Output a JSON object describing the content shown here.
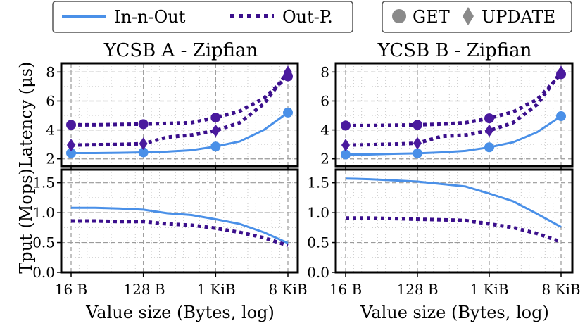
{
  "legend_series": {
    "items": [
      {
        "label": "In-n-Out",
        "color": "#4a90e8",
        "style": "solid"
      },
      {
        "label": "Out-P.",
        "color": "#3b0f8c",
        "style": "dotted"
      }
    ]
  },
  "legend_markers": {
    "items": [
      {
        "label": "GET",
        "marker": "circle"
      },
      {
        "label": "UPDATE",
        "marker": "diamond"
      }
    ]
  },
  "x_axis": {
    "label": "Value size (Bytes, log)",
    "ticks": [
      {
        "label": "16 B",
        "x": 16
      },
      {
        "label": "128 B",
        "x": 128
      },
      {
        "label": "1 KiB",
        "x": 1024
      },
      {
        "label": "8 KiB",
        "x": 8192
      }
    ]
  },
  "chart_data": [
    {
      "type": "line",
      "panel": "YCSB A latency",
      "title": "YCSB A - Zipfian",
      "xlabel": "Value size (Bytes, log)",
      "ylabel": "Latency (μs)",
      "xscale": "log2",
      "xlim": [
        16,
        8192
      ],
      "ylim": [
        1.5,
        8.6
      ],
      "yticks": [
        2,
        4,
        6,
        8
      ],
      "x": [
        16,
        32,
        64,
        128,
        256,
        512,
        1024,
        2048,
        4096,
        8192
      ],
      "series": [
        {
          "name": "In-n-Out GET",
          "values": [
            2.4,
            2.4,
            2.42,
            2.45,
            2.5,
            2.6,
            2.85,
            3.2,
            4.0,
            5.2
          ],
          "markers": [
            16,
            128,
            1024,
            8192
          ],
          "marker": "circle"
        },
        {
          "name": "Out-P. GET",
          "values": [
            4.35,
            4.35,
            4.38,
            4.4,
            4.45,
            4.5,
            4.85,
            5.3,
            6.2,
            7.7
          ],
          "markers": [
            16,
            128,
            1024,
            8192
          ],
          "marker": "circle"
        },
        {
          "name": "Out-P. UPDATE",
          "values": [
            2.95,
            2.98,
            3.0,
            3.05,
            3.5,
            3.65,
            3.95,
            4.5,
            5.8,
            8.0
          ],
          "markers": [
            16,
            128,
            1024,
            8192
          ],
          "marker": "diamond"
        }
      ]
    },
    {
      "type": "line",
      "panel": "YCSB B latency",
      "title": "YCSB B - Zipfian",
      "xlabel": "Value size (Bytes, log)",
      "ylabel": "Latency (μs)",
      "xscale": "log2",
      "xlim": [
        16,
        8192
      ],
      "ylim": [
        1.5,
        8.6
      ],
      "yticks": [
        2,
        4,
        6,
        8
      ],
      "x": [
        16,
        32,
        64,
        128,
        256,
        512,
        1024,
        2048,
        4096,
        8192
      ],
      "series": [
        {
          "name": "In-n-Out GET",
          "values": [
            2.3,
            2.3,
            2.35,
            2.38,
            2.45,
            2.55,
            2.8,
            3.15,
            3.85,
            4.95
          ],
          "markers": [
            16,
            128,
            1024,
            8192
          ],
          "marker": "circle"
        },
        {
          "name": "Out-P. GET",
          "values": [
            4.3,
            4.3,
            4.33,
            4.35,
            4.4,
            4.5,
            4.8,
            5.25,
            6.1,
            7.85
          ],
          "markers": [
            16,
            128,
            1024,
            8192
          ],
          "marker": "circle"
        },
        {
          "name": "Out-P. UPDATE",
          "values": [
            2.95,
            2.98,
            3.02,
            3.08,
            3.55,
            3.65,
            3.95,
            4.5,
            5.75,
            8.0
          ],
          "markers": [
            16,
            128,
            1024,
            8192
          ],
          "marker": "diamond"
        }
      ]
    },
    {
      "type": "line",
      "panel": "YCSB A throughput",
      "xlabel": "Value size (Bytes, log)",
      "ylabel": "Tput (Mops)",
      "xscale": "log2",
      "xlim": [
        16,
        8192
      ],
      "ylim": [
        0.0,
        1.72
      ],
      "yticks": [
        0.0,
        0.5,
        1.0,
        1.5
      ],
      "x": [
        16,
        32,
        64,
        128,
        256,
        512,
        1024,
        2048,
        4096,
        8192
      ],
      "series": [
        {
          "name": "In-n-Out",
          "values": [
            1.08,
            1.08,
            1.07,
            1.05,
            0.99,
            0.96,
            0.89,
            0.81,
            0.67,
            0.49
          ]
        },
        {
          "name": "Out-P.",
          "values": [
            0.86,
            0.86,
            0.85,
            0.85,
            0.81,
            0.79,
            0.74,
            0.67,
            0.58,
            0.45
          ]
        }
      ]
    },
    {
      "type": "line",
      "panel": "YCSB B throughput",
      "xlabel": "Value size (Bytes, log)",
      "ylabel": "Tput (Mops)",
      "xscale": "log2",
      "xlim": [
        16,
        8192
      ],
      "ylim": [
        0.0,
        1.72
      ],
      "yticks": [
        0.0,
        0.5,
        1.0,
        1.5
      ],
      "x": [
        16,
        32,
        64,
        128,
        256,
        512,
        1024,
        2048,
        4096,
        8192
      ],
      "series": [
        {
          "name": "In-n-Out",
          "values": [
            1.57,
            1.56,
            1.54,
            1.52,
            1.48,
            1.44,
            1.32,
            1.19,
            0.98,
            0.76
          ]
        },
        {
          "name": "Out-P.",
          "values": [
            0.91,
            0.91,
            0.9,
            0.89,
            0.88,
            0.87,
            0.81,
            0.75,
            0.65,
            0.51
          ]
        }
      ]
    }
  ]
}
